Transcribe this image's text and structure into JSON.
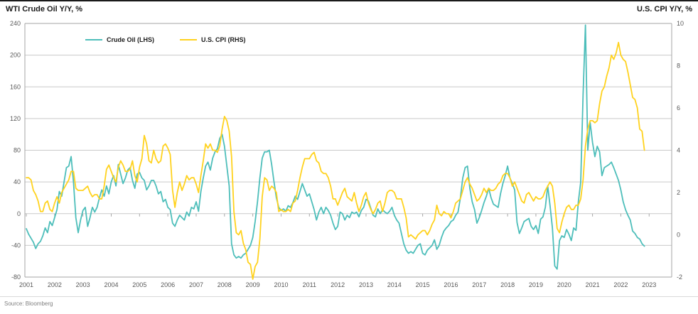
{
  "header": {
    "left_axis_title": "WTI Crude Oil Y/Y, %",
    "right_axis_title": "U.S. CPI Y/Y, %"
  },
  "source": "Source: Bloomberg",
  "chart_data": {
    "type": "line",
    "title": "",
    "frequency": "monthly",
    "start": "2001-07",
    "end": "2023-05",
    "x_labels": [
      "2001",
      "2002",
      "2003",
      "2004",
      "2005",
      "2006",
      "2007",
      "2008",
      "2009",
      "2010",
      "2011",
      "2012",
      "2013",
      "2014",
      "2015",
      "2016",
      "2017",
      "2018",
      "2019",
      "2020",
      "2021",
      "2022",
      "2023"
    ],
    "left_axis": {
      "label": "WTI Crude Oil Y/Y, %",
      "min": -80,
      "max": 240,
      "tick_step": 40,
      "ticks": [
        "240",
        "200",
        "160",
        "120",
        "80",
        "40",
        "0",
        "-40",
        "-80"
      ]
    },
    "right_axis": {
      "label": "U.S. CPI Y/Y, %",
      "min": -2,
      "max": 10,
      "tick_step": 2,
      "ticks": [
        "10",
        "8",
        "6",
        "4",
        "2",
        "0",
        "-2"
      ]
    },
    "grid": true,
    "legend_position": "top-inside",
    "legend": [
      {
        "label": "Crude Oil (LHS)",
        "color": "#4DBEBA"
      },
      {
        "label": "U.S. CPI (RHS)",
        "color": "#FFD21E"
      }
    ],
    "series": [
      {
        "name": "Crude Oil (LHS)",
        "axis": "left",
        "color": "#4DBEBA",
        "values": [
          -19,
          -26,
          -31,
          -36,
          -44,
          -38,
          -35,
          -28,
          -18,
          -24,
          -10,
          -15,
          -5,
          5,
          28,
          22,
          40,
          58,
          60,
          72,
          40,
          -5,
          -24,
          -8,
          4,
          8,
          -16,
          -5,
          8,
          2,
          8,
          20,
          30,
          22,
          35,
          25,
          40,
          48,
          35,
          62,
          50,
          38,
          45,
          55,
          58,
          42,
          32,
          50,
          52,
          45,
          42,
          30,
          35,
          42,
          42,
          35,
          25,
          28,
          15,
          18,
          8,
          5,
          -12,
          -16,
          -8,
          -2,
          -5,
          -8,
          2,
          -3,
          8,
          6,
          15,
          3,
          28,
          45,
          60,
          65,
          55,
          70,
          78,
          82,
          95,
          100,
          85,
          60,
          35,
          -38,
          -52,
          -56,
          -54,
          -56,
          -52,
          -50,
          -45,
          -40,
          -30,
          -10,
          15,
          45,
          70,
          78,
          78,
          80,
          62,
          40,
          20,
          8,
          4,
          6,
          3,
          10,
          8,
          14,
          22,
          18,
          28,
          38,
          30,
          22,
          25,
          15,
          5,
          -8,
          2,
          8,
          0,
          8,
          4,
          -2,
          -12,
          -20,
          -16,
          2,
          0,
          -8,
          -2,
          -5,
          2,
          0,
          2,
          -4,
          4,
          8,
          18,
          16,
          7,
          -2,
          -4,
          6,
          0,
          5,
          2,
          0,
          3,
          8,
          -2,
          -8,
          -12,
          -25,
          -38,
          -46,
          -50,
          -48,
          -50,
          -45,
          -40,
          -38,
          -50,
          -52,
          -46,
          -43,
          -40,
          -33,
          -45,
          -40,
          -30,
          -22,
          -18,
          -15,
          -10,
          -8,
          -2,
          2,
          20,
          45,
          58,
          60,
          32,
          15,
          5,
          -12,
          -5,
          4,
          14,
          22,
          32,
          20,
          12,
          10,
          8,
          25,
          38,
          48,
          60,
          45,
          38,
          30,
          -11,
          -25,
          -18,
          -10,
          -8,
          -6,
          -16,
          -20,
          -15,
          -25,
          -7,
          -4,
          8,
          35,
          10,
          -18,
          -66,
          -70,
          -34,
          -28,
          -30,
          -20,
          -26,
          -34,
          -18,
          -21,
          15,
          40,
          150,
          238,
          80,
          115,
          90,
          72,
          85,
          78,
          48,
          58,
          60,
          62,
          65,
          58,
          50,
          42,
          30,
          15,
          5,
          -2,
          -8,
          -22,
          -25,
          -30,
          -32,
          -38,
          -41
        ]
      },
      {
        "name": "U.S. CPI (RHS)",
        "axis": "right",
        "color": "#FFD21E",
        "values": [
          2.7,
          2.7,
          2.6,
          2.1,
          1.9,
          1.6,
          1.1,
          1.1,
          1.5,
          1.6,
          1.2,
          1.1,
          1.5,
          1.8,
          1.5,
          2.0,
          2.2,
          2.4,
          2.6,
          3.0,
          3.0,
          2.2,
          2.1,
          2.1,
          2.1,
          2.2,
          2.3,
          2.0,
          1.8,
          1.9,
          1.9,
          1.7,
          1.7,
          2.3,
          3.1,
          3.3,
          3.0,
          2.7,
          2.5,
          3.2,
          3.5,
          3.3,
          3.0,
          3.0,
          3.1,
          3.5,
          2.8,
          2.5,
          3.2,
          3.6,
          4.7,
          4.3,
          3.5,
          3.4,
          4.0,
          3.6,
          3.4,
          3.5,
          4.2,
          4.3,
          4.1,
          3.8,
          2.1,
          1.3,
          2.0,
          2.5,
          2.1,
          2.4,
          2.8,
          2.6,
          2.7,
          2.7,
          2.4,
          2.0,
          2.8,
          3.5,
          4.3,
          4.1,
          4.3,
          4.0,
          4.0,
          3.9,
          4.2,
          5.0,
          5.6,
          5.4,
          4.9,
          3.7,
          1.1,
          0.1,
          0.0,
          0.2,
          -0.4,
          -0.7,
          -1.3,
          -1.4,
          -2.1,
          -1.5,
          -1.3,
          -0.2,
          1.8,
          2.7,
          2.6,
          2.1,
          2.3,
          2.2,
          2.0,
          1.1,
          1.2,
          1.1,
          1.1,
          1.2,
          1.1,
          1.5,
          1.6,
          2.1,
          2.7,
          3.2,
          3.6,
          3.6,
          3.6,
          3.8,
          3.9,
          3.5,
          3.4,
          3.0,
          2.9,
          2.9,
          2.7,
          2.3,
          1.7,
          1.7,
          1.4,
          1.7,
          2.0,
          2.2,
          1.8,
          1.7,
          1.6,
          2.0,
          1.5,
          1.1,
          1.4,
          1.8,
          2.0,
          1.5,
          1.2,
          1.0,
          1.2,
          1.5,
          1.6,
          1.1,
          1.5,
          2.0,
          2.1,
          2.1,
          2.0,
          1.7,
          1.7,
          1.7,
          1.3,
          0.8,
          -0.1,
          0.0,
          -0.1,
          -0.2,
          0.0,
          0.1,
          0.2,
          0.2,
          0.0,
          0.2,
          0.5,
          0.7,
          1.4,
          1.0,
          0.9,
          1.1,
          1.0,
          1.0,
          0.8,
          1.1,
          1.5,
          1.6,
          1.7,
          2.1,
          2.5,
          2.7,
          2.4,
          2.2,
          1.9,
          1.6,
          1.7,
          1.9,
          2.2,
          2.0,
          2.2,
          2.1,
          2.1,
          2.2,
          2.4,
          2.5,
          2.8,
          2.9,
          2.9,
          2.7,
          2.3,
          2.5,
          2.2,
          1.9,
          1.6,
          1.5,
          1.9,
          2.0,
          1.8,
          1.6,
          1.8,
          1.7,
          1.7,
          1.8,
          2.1,
          2.3,
          2.5,
          2.3,
          1.5,
          0.3,
          0.1,
          0.6,
          1.0,
          1.3,
          1.4,
          1.2,
          1.2,
          1.4,
          1.4,
          1.7,
          2.6,
          4.2,
          5.0,
          5.4,
          5.4,
          5.3,
          5.4,
          6.2,
          6.8,
          7.0,
          7.5,
          7.9,
          8.5,
          8.3,
          8.6,
          9.1,
          8.5,
          8.3,
          8.2,
          7.7,
          7.1,
          6.5,
          6.4,
          6.0,
          5.0,
          4.9,
          4.0
        ]
      }
    ]
  }
}
